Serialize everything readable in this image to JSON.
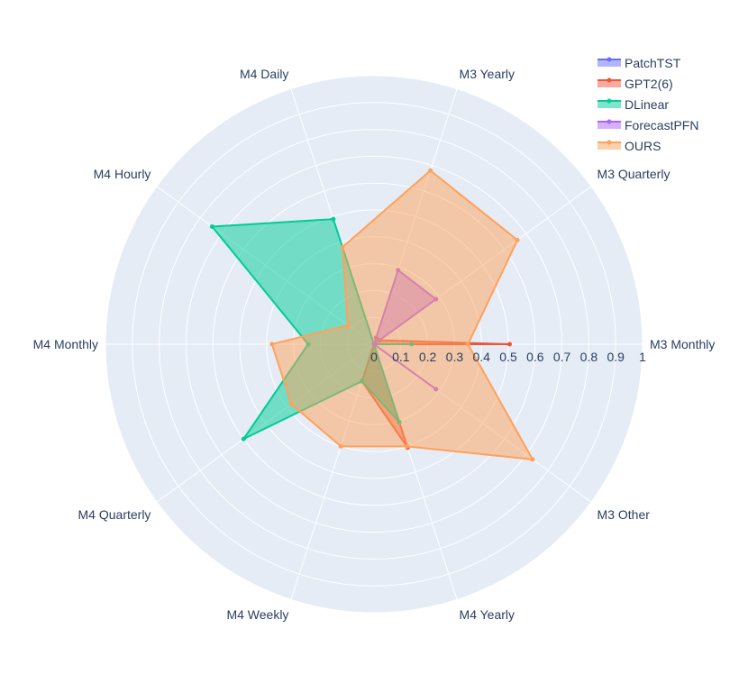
{
  "chart_data": {
    "type": "radar",
    "title": "",
    "axes": [
      "M3 Monthly",
      "M3 Quarterly",
      "M3 Yearly",
      "M4 Daily",
      "M4 Hourly",
      "M4 Monthly",
      "M4 Quarterly",
      "M4 Weekly",
      "M4 Yearly",
      "M3 Other"
    ],
    "radial_range": [
      0,
      1
    ],
    "radial_ticks": [
      "0",
      "0.1",
      "0.2",
      "0.3",
      "0.4",
      "0.5",
      "0.6",
      "0.7",
      "0.8",
      "0.9",
      "1"
    ],
    "legend_position": "top-right",
    "grid": true,
    "background_color": "#e5ecf6",
    "series": [
      {
        "name": "PatchTST",
        "color": "#636efa",
        "values": [
          0,
          0,
          0,
          0,
          0,
          0,
          0,
          0,
          0,
          0
        ]
      },
      {
        "name": "GPT2(6)",
        "color": "#ef553b",
        "values": [
          0.505,
          0.025,
          0.025,
          0,
          0,
          0,
          0,
          0.145,
          0.405,
          0
        ]
      },
      {
        "name": "DLinear",
        "color": "#00cc96",
        "values": [
          0.14,
          0,
          0,
          0.49,
          0.745,
          0.245,
          0.6,
          0.145,
          0.305,
          0
        ]
      },
      {
        "name": "ForecastPFN",
        "color": "#ab63fa",
        "values": [
          0,
          0.285,
          0.29,
          0,
          0,
          0,
          0,
          0,
          0,
          0.285
        ]
      },
      {
        "name": "OURS",
        "color": "#ffa15a",
        "values": [
          0.35,
          0.66,
          0.68,
          0.38,
          0.12,
          0.38,
          0.38,
          0.4,
          0.4,
          0.73
        ]
      }
    ]
  }
}
